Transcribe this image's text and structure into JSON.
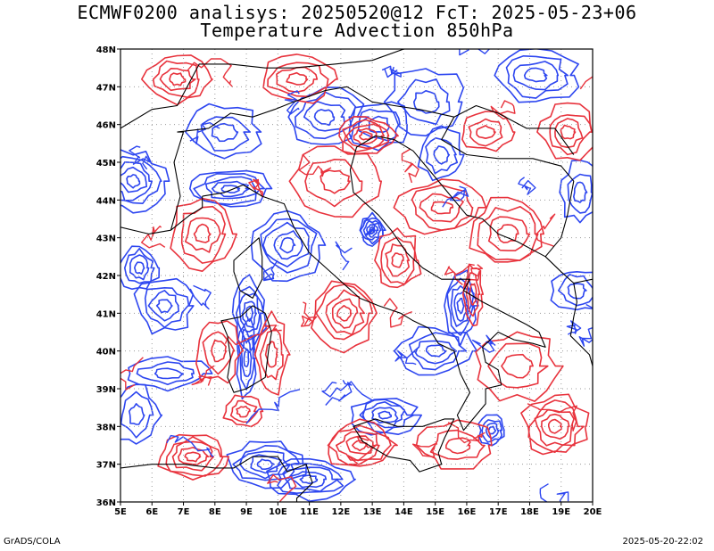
{
  "title_line1": "ECMWF0200 analisys: 20250520@12 FcT: 2025-05-23+06",
  "title_line2": "Temperature Advection 850hPa",
  "footer_left": "GrADS/COLA",
  "footer_right": "2025-05-20-22:02",
  "map": {
    "lon_range": [
      5,
      20
    ],
    "lat_range": [
      36,
      48
    ],
    "lon_labels": [
      "5E",
      "6E",
      "7E",
      "8E",
      "9E",
      "10E",
      "11E",
      "12E",
      "13E",
      "14E",
      "15E",
      "16E",
      "17E",
      "18E",
      "19E",
      "20E"
    ],
    "lat_labels": [
      "36N",
      "37N",
      "38N",
      "39N",
      "40N",
      "41N",
      "42N",
      "43N",
      "44N",
      "45N",
      "46N",
      "47N",
      "48N"
    ],
    "contour_colors": {
      "warm_advection": "#e8323c",
      "cold_advection": "#2d46f0"
    },
    "coastline_color": "#000000",
    "grid_lines": "dotted"
  }
}
